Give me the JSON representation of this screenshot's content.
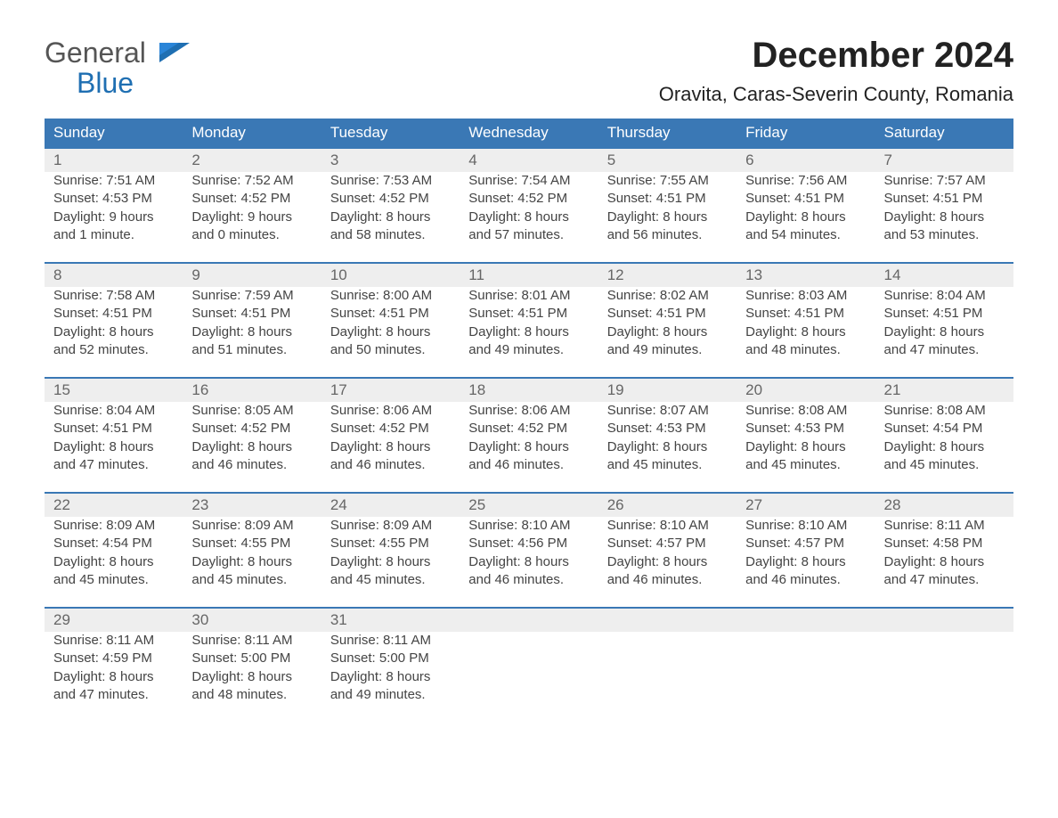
{
  "logo": {
    "line1": "General",
    "line2": "Blue",
    "icon_color": "#1f6fb2"
  },
  "title": "December 2024",
  "location": "Oravita, Caras-Severin County, Romania",
  "colors": {
    "header_bg": "#3a78b5",
    "header_text": "#ffffff",
    "daynum_bg": "#eeeeee",
    "rule": "#3a78b5",
    "body_text": "#444444"
  },
  "weekdays": [
    "Sunday",
    "Monday",
    "Tuesday",
    "Wednesday",
    "Thursday",
    "Friday",
    "Saturday"
  ],
  "weeks": [
    [
      {
        "day": "1",
        "sunrise": "Sunrise: 7:51 AM",
        "sunset": "Sunset: 4:53 PM",
        "dl1": "Daylight: 9 hours",
        "dl2": "and 1 minute."
      },
      {
        "day": "2",
        "sunrise": "Sunrise: 7:52 AM",
        "sunset": "Sunset: 4:52 PM",
        "dl1": "Daylight: 9 hours",
        "dl2": "and 0 minutes."
      },
      {
        "day": "3",
        "sunrise": "Sunrise: 7:53 AM",
        "sunset": "Sunset: 4:52 PM",
        "dl1": "Daylight: 8 hours",
        "dl2": "and 58 minutes."
      },
      {
        "day": "4",
        "sunrise": "Sunrise: 7:54 AM",
        "sunset": "Sunset: 4:52 PM",
        "dl1": "Daylight: 8 hours",
        "dl2": "and 57 minutes."
      },
      {
        "day": "5",
        "sunrise": "Sunrise: 7:55 AM",
        "sunset": "Sunset: 4:51 PM",
        "dl1": "Daylight: 8 hours",
        "dl2": "and 56 minutes."
      },
      {
        "day": "6",
        "sunrise": "Sunrise: 7:56 AM",
        "sunset": "Sunset: 4:51 PM",
        "dl1": "Daylight: 8 hours",
        "dl2": "and 54 minutes."
      },
      {
        "day": "7",
        "sunrise": "Sunrise: 7:57 AM",
        "sunset": "Sunset: 4:51 PM",
        "dl1": "Daylight: 8 hours",
        "dl2": "and 53 minutes."
      }
    ],
    [
      {
        "day": "8",
        "sunrise": "Sunrise: 7:58 AM",
        "sunset": "Sunset: 4:51 PM",
        "dl1": "Daylight: 8 hours",
        "dl2": "and 52 minutes."
      },
      {
        "day": "9",
        "sunrise": "Sunrise: 7:59 AM",
        "sunset": "Sunset: 4:51 PM",
        "dl1": "Daylight: 8 hours",
        "dl2": "and 51 minutes."
      },
      {
        "day": "10",
        "sunrise": "Sunrise: 8:00 AM",
        "sunset": "Sunset: 4:51 PM",
        "dl1": "Daylight: 8 hours",
        "dl2": "and 50 minutes."
      },
      {
        "day": "11",
        "sunrise": "Sunrise: 8:01 AM",
        "sunset": "Sunset: 4:51 PM",
        "dl1": "Daylight: 8 hours",
        "dl2": "and 49 minutes."
      },
      {
        "day": "12",
        "sunrise": "Sunrise: 8:02 AM",
        "sunset": "Sunset: 4:51 PM",
        "dl1": "Daylight: 8 hours",
        "dl2": "and 49 minutes."
      },
      {
        "day": "13",
        "sunrise": "Sunrise: 8:03 AM",
        "sunset": "Sunset: 4:51 PM",
        "dl1": "Daylight: 8 hours",
        "dl2": "and 48 minutes."
      },
      {
        "day": "14",
        "sunrise": "Sunrise: 8:04 AM",
        "sunset": "Sunset: 4:51 PM",
        "dl1": "Daylight: 8 hours",
        "dl2": "and 47 minutes."
      }
    ],
    [
      {
        "day": "15",
        "sunrise": "Sunrise: 8:04 AM",
        "sunset": "Sunset: 4:51 PM",
        "dl1": "Daylight: 8 hours",
        "dl2": "and 47 minutes."
      },
      {
        "day": "16",
        "sunrise": "Sunrise: 8:05 AM",
        "sunset": "Sunset: 4:52 PM",
        "dl1": "Daylight: 8 hours",
        "dl2": "and 46 minutes."
      },
      {
        "day": "17",
        "sunrise": "Sunrise: 8:06 AM",
        "sunset": "Sunset: 4:52 PM",
        "dl1": "Daylight: 8 hours",
        "dl2": "and 46 minutes."
      },
      {
        "day": "18",
        "sunrise": "Sunrise: 8:06 AM",
        "sunset": "Sunset: 4:52 PM",
        "dl1": "Daylight: 8 hours",
        "dl2": "and 46 minutes."
      },
      {
        "day": "19",
        "sunrise": "Sunrise: 8:07 AM",
        "sunset": "Sunset: 4:53 PM",
        "dl1": "Daylight: 8 hours",
        "dl2": "and 45 minutes."
      },
      {
        "day": "20",
        "sunrise": "Sunrise: 8:08 AM",
        "sunset": "Sunset: 4:53 PM",
        "dl1": "Daylight: 8 hours",
        "dl2": "and 45 minutes."
      },
      {
        "day": "21",
        "sunrise": "Sunrise: 8:08 AM",
        "sunset": "Sunset: 4:54 PM",
        "dl1": "Daylight: 8 hours",
        "dl2": "and 45 minutes."
      }
    ],
    [
      {
        "day": "22",
        "sunrise": "Sunrise: 8:09 AM",
        "sunset": "Sunset: 4:54 PM",
        "dl1": "Daylight: 8 hours",
        "dl2": "and 45 minutes."
      },
      {
        "day": "23",
        "sunrise": "Sunrise: 8:09 AM",
        "sunset": "Sunset: 4:55 PM",
        "dl1": "Daylight: 8 hours",
        "dl2": "and 45 minutes."
      },
      {
        "day": "24",
        "sunrise": "Sunrise: 8:09 AM",
        "sunset": "Sunset: 4:55 PM",
        "dl1": "Daylight: 8 hours",
        "dl2": "and 45 minutes."
      },
      {
        "day": "25",
        "sunrise": "Sunrise: 8:10 AM",
        "sunset": "Sunset: 4:56 PM",
        "dl1": "Daylight: 8 hours",
        "dl2": "and 46 minutes."
      },
      {
        "day": "26",
        "sunrise": "Sunrise: 8:10 AM",
        "sunset": "Sunset: 4:57 PM",
        "dl1": "Daylight: 8 hours",
        "dl2": "and 46 minutes."
      },
      {
        "day": "27",
        "sunrise": "Sunrise: 8:10 AM",
        "sunset": "Sunset: 4:57 PM",
        "dl1": "Daylight: 8 hours",
        "dl2": "and 46 minutes."
      },
      {
        "day": "28",
        "sunrise": "Sunrise: 8:11 AM",
        "sunset": "Sunset: 4:58 PM",
        "dl1": "Daylight: 8 hours",
        "dl2": "and 47 minutes."
      }
    ],
    [
      {
        "day": "29",
        "sunrise": "Sunrise: 8:11 AM",
        "sunset": "Sunset: 4:59 PM",
        "dl1": "Daylight: 8 hours",
        "dl2": "and 47 minutes."
      },
      {
        "day": "30",
        "sunrise": "Sunrise: 8:11 AM",
        "sunset": "Sunset: 5:00 PM",
        "dl1": "Daylight: 8 hours",
        "dl2": "and 48 minutes."
      },
      {
        "day": "31",
        "sunrise": "Sunrise: 8:11 AM",
        "sunset": "Sunset: 5:00 PM",
        "dl1": "Daylight: 8 hours",
        "dl2": "and 49 minutes."
      },
      null,
      null,
      null,
      null
    ]
  ]
}
